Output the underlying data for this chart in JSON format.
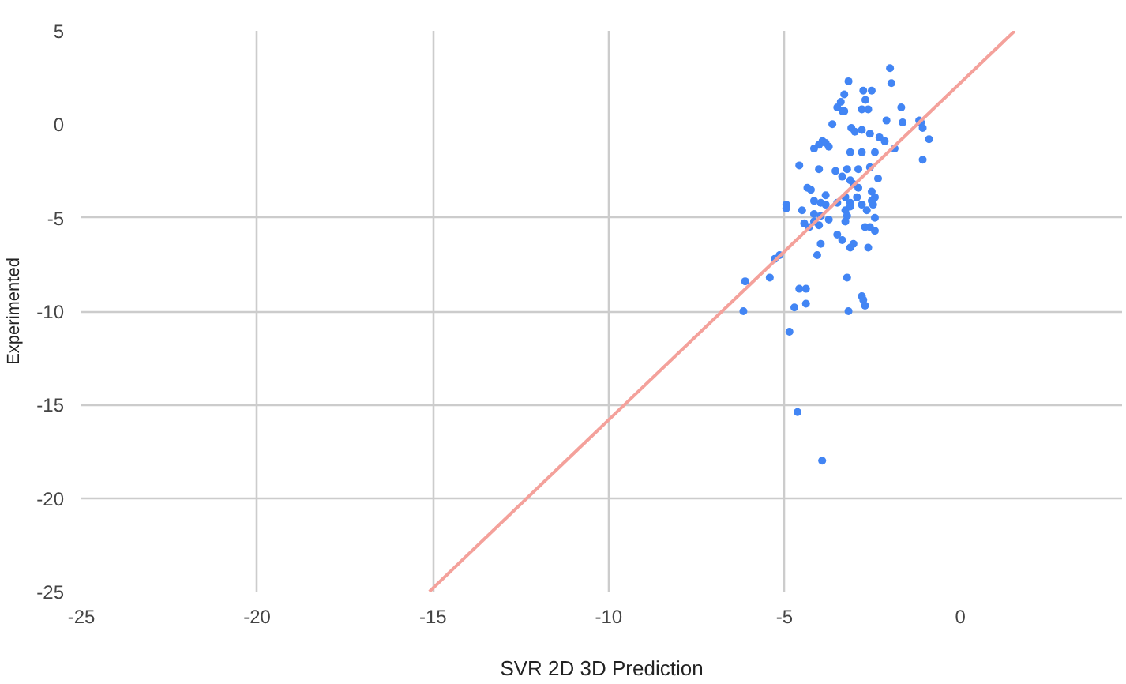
{
  "chart_data": {
    "type": "scatter",
    "xlabel": "SVR 2D 3D Prediction",
    "ylabel": "Experimented",
    "xlim": [
      -25,
      4.6
    ],
    "ylim": [
      -25,
      5
    ],
    "xticks": [
      -25,
      -20,
      -15,
      -10,
      -5,
      0
    ],
    "yticks": [
      -25,
      -20,
      -15,
      -10,
      -5,
      0,
      5
    ],
    "grid": true,
    "marker": "circle",
    "series": [
      {
        "color": "#4285f4",
        "x": [
          -2.0,
          -1.96,
          -3.18,
          -3.3,
          -3.4,
          -3.5,
          -3.35,
          -3.3,
          -2.76,
          -2.52,
          -2.7,
          -2.8,
          -2.62,
          -1.68,
          -2.1,
          -1.64,
          -1.17,
          -1.12,
          -3.64,
          -3.1,
          -3.0,
          -2.8,
          -2.57,
          -2.3,
          -2.15,
          -1.07,
          -0.89,
          -3.92,
          -3.83,
          -4.02,
          -4.16,
          -3.74,
          -3.13,
          -2.8,
          -2.43,
          -1.87,
          -1.07,
          -4.58,
          -4.02,
          -3.55,
          -3.22,
          -2.9,
          -2.57,
          -3.36,
          -3.13,
          -3.04,
          -2.9,
          -2.34,
          -4.35,
          -4.25,
          -2.52,
          -2.43,
          -4.16,
          -3.97,
          -3.83,
          -3.13,
          -2.8,
          -2.48,
          -4.95,
          -3.83,
          -3.27,
          -2.94,
          -2.52,
          -4.95,
          -4.5,
          -4.16,
          -3.97,
          -4.16,
          -3.27,
          -3.13,
          -3.22,
          -3.27,
          -3.5,
          -2.66,
          -2.43,
          -2.57,
          -3.74,
          -4.44,
          -4.3,
          -4.02,
          -2.71,
          -2.43,
          -3.5,
          -3.36,
          -3.97,
          -3.04,
          -3.13,
          -4.07,
          -2.62,
          -5.14,
          -5.28,
          -5.42,
          -6.12,
          -3.22,
          -4.58,
          -4.39,
          -2.8,
          -2.76,
          -2.71,
          -4.39,
          -4.72,
          -3.18,
          -6.17,
          -4.86,
          -4.63,
          -3.93
        ],
        "values": [
          3.0,
          2.2,
          2.3,
          1.6,
          1.2,
          0.9,
          0.7,
          0.7,
          1.8,
          1.8,
          1.3,
          0.8,
          0.8,
          0.9,
          0.2,
          0.1,
          0.2,
          0.1,
          0.0,
          -0.2,
          -0.4,
          -0.3,
          -0.5,
          -0.7,
          -0.9,
          -0.2,
          -0.8,
          -0.9,
          -1.0,
          -1.1,
          -1.3,
          -1.2,
          -1.5,
          -1.5,
          -1.5,
          -1.3,
          -1.9,
          -2.2,
          -2.4,
          -2.5,
          -2.4,
          -2.4,
          -2.3,
          -2.8,
          -3.0,
          -3.2,
          -3.4,
          -2.9,
          -3.4,
          -3.5,
          -3.6,
          -3.9,
          -4.1,
          -4.2,
          -4.3,
          -4.2,
          -4.3,
          -4.3,
          -4.3,
          -3.8,
          -3.9,
          -3.9,
          -4.1,
          -4.5,
          -4.6,
          -4.8,
          -4.9,
          -5.2,
          -4.6,
          -4.4,
          -4.9,
          -5.2,
          -4.2,
          -4.6,
          -5.0,
          -5.5,
          -5.1,
          -5.3,
          -5.5,
          -5.4,
          -5.5,
          -5.7,
          -5.9,
          -6.2,
          -6.4,
          -6.4,
          -6.6,
          -7.0,
          -6.6,
          -7.0,
          -7.2,
          -8.2,
          -8.4,
          -8.2,
          -8.8,
          -8.8,
          -9.2,
          -9.4,
          -9.7,
          -9.6,
          -9.8,
          -10.0,
          -10.0,
          -11.1,
          -15.4,
          -18.0
        ]
      },
      {
        "type": "line",
        "marker": "none",
        "color": "#f4a19b",
        "x": [
          -15.1,
          1.55
        ],
        "values": [
          -25,
          5
        ]
      }
    ]
  }
}
